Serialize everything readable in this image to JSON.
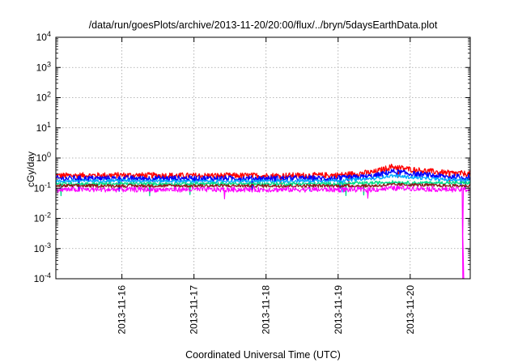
{
  "chart_data": {
    "type": "line",
    "title": "/data/run/goesPlots/archive/2013-11-20/20:00/flux/../bryn/5daysEarthData.plot",
    "xlabel": "Coordinated Universal Time (UTC)",
    "ylabel": "cGy/day",
    "y_scale": "log",
    "ylim": [
      0.0001,
      10000
    ],
    "xlim": [
      "2013-11-15T02:00",
      "2013-11-20T20:00"
    ],
    "grid": true,
    "legend": "none",
    "x_ticks": [
      "2013-11-16",
      "2013-11-17",
      "2013-11-18",
      "2013-11-19",
      "2013-11-20"
    ],
    "y_ticks": [
      {
        "base": "10",
        "exp": "-4",
        "value": 0.0001
      },
      {
        "base": "10",
        "exp": "-3",
        "value": 0.001
      },
      {
        "base": "10",
        "exp": "-2",
        "value": 0.01
      },
      {
        "base": "10",
        "exp": "-1",
        "value": 0.1
      },
      {
        "base": "10",
        "exp": "0",
        "value": 1
      },
      {
        "base": "10",
        "exp": "1",
        "value": 10
      },
      {
        "base": "10",
        "exp": "2",
        "value": 100
      },
      {
        "base": "10",
        "exp": "3",
        "value": 1000
      },
      {
        "base": "10",
        "exp": "4",
        "value": 10000
      }
    ],
    "series": [
      {
        "color": "#ff0000",
        "x": [
          "2013-11-15T02:00",
          "2013-11-16T00:00",
          "2013-11-17T00:00",
          "2013-11-18T00:00",
          "2013-11-19T00:00",
          "2013-11-19T12:00",
          "2013-11-19T18:00",
          "2013-11-20T00:00",
          "2013-11-20T12:00",
          "2013-11-20T20:00"
        ],
        "y": [
          0.26,
          0.27,
          0.26,
          0.26,
          0.27,
          0.34,
          0.52,
          0.42,
          0.32,
          0.3
        ]
      },
      {
        "color": "#0000ff",
        "x": [
          "2013-11-15T02:00",
          "2013-11-16T00:00",
          "2013-11-17T00:00",
          "2013-11-18T00:00",
          "2013-11-19T00:00",
          "2013-11-19T12:00",
          "2013-11-19T18:00",
          "2013-11-20T00:00",
          "2013-11-20T12:00",
          "2013-11-20T20:00"
        ],
        "y": [
          0.21,
          0.21,
          0.21,
          0.21,
          0.21,
          0.25,
          0.36,
          0.3,
          0.24,
          0.23
        ]
      },
      {
        "color": "#00aaff",
        "x": [
          "2013-11-15T02:00",
          "2013-11-16T00:00",
          "2013-11-17T00:00",
          "2013-11-18T00:00",
          "2013-11-19T00:00",
          "2013-11-19T12:00",
          "2013-11-19T18:00",
          "2013-11-20T00:00",
          "2013-11-20T12:00",
          "2013-11-20T20:00"
        ],
        "y": [
          0.17,
          0.18,
          0.17,
          0.17,
          0.18,
          0.21,
          0.26,
          0.23,
          0.19,
          0.19
        ]
      },
      {
        "color": "#00dd88",
        "x": [
          "2013-11-15T02:00",
          "2013-11-16T00:00",
          "2013-11-17T00:00",
          "2013-11-18T00:00",
          "2013-11-19T00:00",
          "2013-11-19T12:00",
          "2013-11-19T18:00",
          "2013-11-20T00:00",
          "2013-11-20T12:00",
          "2013-11-20T20:00"
        ],
        "y": [
          0.14,
          0.14,
          0.14,
          0.14,
          0.14,
          0.15,
          0.16,
          0.15,
          0.15,
          0.15
        ]
      },
      {
        "color": "#8b1a1a",
        "x": [
          "2013-11-15T02:00",
          "2013-11-16T00:00",
          "2013-11-17T00:00",
          "2013-11-18T00:00",
          "2013-11-19T00:00",
          "2013-11-19T12:00",
          "2013-11-19T18:00",
          "2013-11-20T00:00",
          "2013-11-20T12:00",
          "2013-11-20T20:00"
        ],
        "y": [
          0.12,
          0.12,
          0.12,
          0.12,
          0.12,
          0.12,
          0.13,
          0.13,
          0.12,
          0.12
        ]
      },
      {
        "color": "#ff00ff",
        "x": [
          "2013-11-15T02:00",
          "2013-11-16T00:00",
          "2013-11-17T00:00",
          "2013-11-18T00:00",
          "2013-11-19T00:00",
          "2013-11-19T12:00",
          "2013-11-19T18:00",
          "2013-11-20T00:00",
          "2013-11-20T12:00",
          "2013-11-20T17:30",
          "2013-11-20T17:31",
          "2013-11-20T17:40",
          "2013-11-20T20:00"
        ],
        "y": [
          0.09,
          0.09,
          0.09,
          0.09,
          0.09,
          0.09,
          0.1,
          0.1,
          0.09,
          0.09,
          0.0001,
          0.09,
          0.09
        ]
      }
    ]
  }
}
